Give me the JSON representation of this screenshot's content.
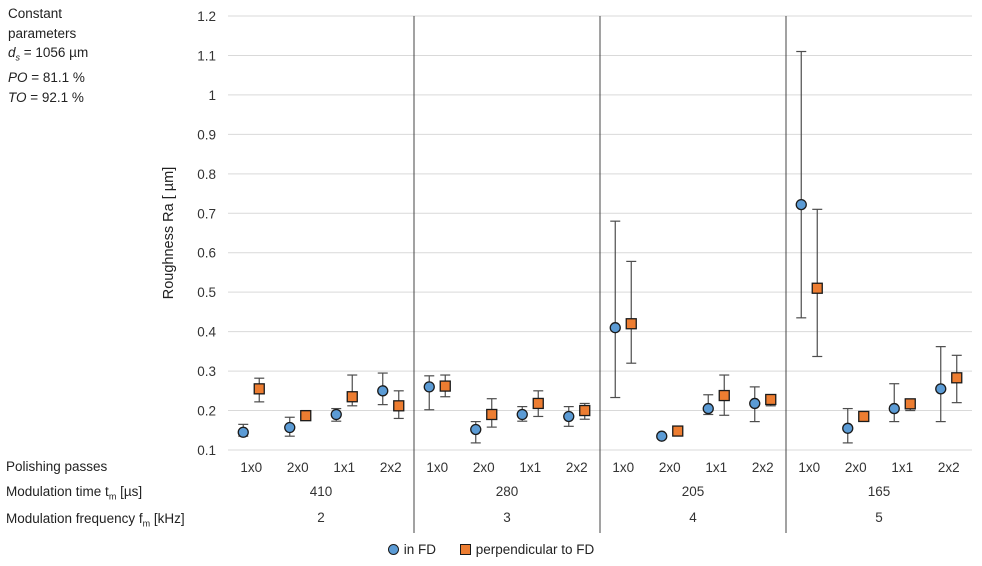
{
  "notes": {
    "line1": "Constant",
    "line2": "parameters",
    "ds_label": "d",
    "ds_sub": "s",
    "ds_value": " = 1056 µm",
    "po_label": "PO",
    "po_value": " = 81.1 %",
    "to_label": "TO",
    "to_value": " = 92.1 %"
  },
  "row_labels": {
    "passes": "Polishing passes",
    "time": "Modulation time t",
    "time_sub": "m",
    "time_unit": " [µs]",
    "freq": "Modulation frequency f",
    "freq_sub": "m",
    "freq_unit": " [kHz]"
  },
  "chart_data": {
    "type": "scatter",
    "ylabel": "Roughness Ra [ µm]",
    "ylim": [
      0.1,
      1.2
    ],
    "yticks": [
      "0.1",
      "0.2",
      "0.3",
      "0.4",
      "0.5",
      "0.6",
      "0.7",
      "0.8",
      "0.9",
      "1",
      "1.1",
      "1.2"
    ],
    "grid": true,
    "legend_position": "bottom-center",
    "groups": [
      {
        "time": "410",
        "freq": "2"
      },
      {
        "time": "280",
        "freq": "3"
      },
      {
        "time": "205",
        "freq": "4"
      },
      {
        "time": "165",
        "freq": "5"
      }
    ],
    "categories": [
      "1x0",
      "2x0",
      "1x1",
      "2x2",
      "1x0",
      "2x0",
      "1x1",
      "2x2",
      "1x0",
      "2x0",
      "1x1",
      "2x2",
      "1x0",
      "2x0",
      "1x1",
      "2x2"
    ],
    "series": [
      {
        "name": "in FD",
        "marker": "circle",
        "color": "#5b9bd5",
        "values": [
          0.145,
          0.157,
          0.19,
          0.25,
          0.26,
          0.152,
          0.19,
          0.185,
          0.41,
          0.135,
          0.205,
          0.218,
          0.722,
          0.155,
          0.205,
          0.255
        ],
        "err_low": [
          0.135,
          0.135,
          0.173,
          0.215,
          0.202,
          0.118,
          0.173,
          0.16,
          0.233,
          0.13,
          0.19,
          0.172,
          0.435,
          0.118,
          0.172,
          0.172
        ],
        "err_high": [
          0.165,
          0.183,
          0.205,
          0.295,
          0.288,
          0.172,
          0.21,
          0.21,
          0.68,
          0.14,
          0.24,
          0.26,
          1.11,
          0.205,
          0.268,
          0.362
        ]
      },
      {
        "name": "perpendicular to FD",
        "marker": "square",
        "color": "#ed7d31",
        "values": [
          0.255,
          0.187,
          0.235,
          0.212,
          0.262,
          0.19,
          0.218,
          0.2,
          0.42,
          0.148,
          0.238,
          0.228,
          0.51,
          0.185,
          0.217,
          0.283
        ],
        "err_low": [
          0.222,
          0.178,
          0.212,
          0.18,
          0.235,
          0.158,
          0.185,
          0.178,
          0.32,
          0.14,
          0.188,
          0.212,
          0.337,
          0.178,
          0.2,
          0.22
        ],
        "err_high": [
          0.282,
          0.2,
          0.29,
          0.25,
          0.29,
          0.23,
          0.25,
          0.218,
          0.578,
          0.153,
          0.29,
          0.24,
          0.71,
          0.19,
          0.228,
          0.34
        ]
      }
    ]
  }
}
